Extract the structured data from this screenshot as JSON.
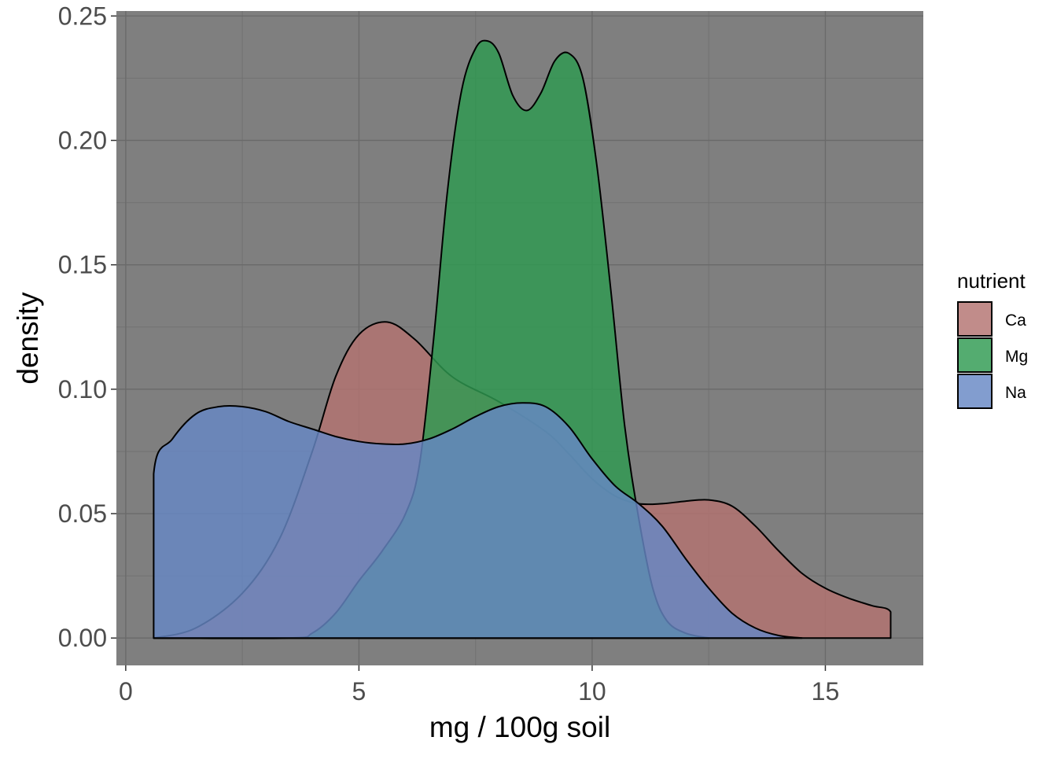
{
  "chart_data": {
    "type": "area",
    "subtype": "density",
    "title": "",
    "xlabel": "mg / 100g soil",
    "ylabel": "density",
    "xlim": [
      -0.2,
      17.1
    ],
    "ylim": [
      -0.011,
      0.252
    ],
    "x_ticks": [
      {
        "value": 0,
        "label": "0"
      },
      {
        "value": 5,
        "label": "5"
      },
      {
        "value": 10,
        "label": "10"
      },
      {
        "value": 15,
        "label": "15"
      }
    ],
    "y_ticks": [
      {
        "value": 0,
        "label": "0.00"
      },
      {
        "value": 0.05,
        "label": "0.05"
      },
      {
        "value": 0.1,
        "label": "0.10"
      },
      {
        "value": 0.15,
        "label": "0.15"
      },
      {
        "value": 0.2,
        "label": "0.20"
      },
      {
        "value": 0.25,
        "label": "0.25"
      }
    ],
    "grid": true,
    "panel_color": "#7f7f7f",
    "legend": {
      "title": "nutrient",
      "position": "right"
    },
    "series": [
      {
        "name": "Ca",
        "color": "#b37370",
        "points": [
          [
            0.6,
            0.0
          ],
          [
            1.5,
            0.004
          ],
          [
            2.5,
            0.018
          ],
          [
            3.3,
            0.04
          ],
          [
            4.0,
            0.075
          ],
          [
            4.5,
            0.105
          ],
          [
            5.0,
            0.122
          ],
          [
            5.6,
            0.127
          ],
          [
            6.2,
            0.12
          ],
          [
            7.0,
            0.105
          ],
          [
            8.0,
            0.095
          ],
          [
            9.0,
            0.083
          ],
          [
            9.5,
            0.074
          ],
          [
            10.0,
            0.064
          ],
          [
            10.5,
            0.057
          ],
          [
            11.0,
            0.054
          ],
          [
            11.5,
            0.054
          ],
          [
            12.0,
            0.055
          ],
          [
            12.5,
            0.0555
          ],
          [
            13.0,
            0.053
          ],
          [
            13.5,
            0.045
          ],
          [
            14.0,
            0.035
          ],
          [
            14.5,
            0.026
          ],
          [
            15.0,
            0.02
          ],
          [
            15.5,
            0.016
          ],
          [
            16.0,
            0.013
          ],
          [
            16.4,
            0.0105
          ],
          [
            16.4,
            0.0
          ]
        ]
      },
      {
        "name": "Mg",
        "color": "#2e9a51",
        "points": [
          [
            0.6,
            0.0
          ],
          [
            3.5,
            0.0
          ],
          [
            4.0,
            0.002
          ],
          [
            4.5,
            0.01
          ],
          [
            5.0,
            0.023
          ],
          [
            5.5,
            0.035
          ],
          [
            6.0,
            0.05
          ],
          [
            6.3,
            0.07
          ],
          [
            6.6,
            0.12
          ],
          [
            6.9,
            0.18
          ],
          [
            7.2,
            0.22
          ],
          [
            7.5,
            0.237
          ],
          [
            7.75,
            0.24
          ],
          [
            8.0,
            0.235
          ],
          [
            8.3,
            0.218
          ],
          [
            8.6,
            0.212
          ],
          [
            8.9,
            0.219
          ],
          [
            9.2,
            0.232
          ],
          [
            9.5,
            0.235
          ],
          [
            9.8,
            0.225
          ],
          [
            10.1,
            0.19
          ],
          [
            10.4,
            0.14
          ],
          [
            10.7,
            0.085
          ],
          [
            11.0,
            0.048
          ],
          [
            11.3,
            0.02
          ],
          [
            11.6,
            0.007
          ],
          [
            12.0,
            0.002
          ],
          [
            12.5,
            0.0
          ]
        ]
      },
      {
        "name": "Na",
        "color": "#6688c4",
        "points": [
          [
            0.6,
            0.0
          ],
          [
            0.6,
            0.066
          ],
          [
            1.0,
            0.08
          ],
          [
            1.5,
            0.09
          ],
          [
            2.0,
            0.093
          ],
          [
            2.5,
            0.093
          ],
          [
            3.0,
            0.091
          ],
          [
            3.5,
            0.087
          ],
          [
            4.0,
            0.084
          ],
          [
            4.5,
            0.081
          ],
          [
            5.0,
            0.079
          ],
          [
            5.5,
            0.078
          ],
          [
            6.0,
            0.078
          ],
          [
            6.5,
            0.08
          ],
          [
            7.0,
            0.084
          ],
          [
            7.5,
            0.089
          ],
          [
            8.0,
            0.093
          ],
          [
            8.5,
            0.0945
          ],
          [
            9.0,
            0.093
          ],
          [
            9.5,
            0.085
          ],
          [
            10.0,
            0.072
          ],
          [
            10.5,
            0.061
          ],
          [
            11.0,
            0.054
          ],
          [
            11.5,
            0.045
          ],
          [
            12.0,
            0.032
          ],
          [
            12.5,
            0.02
          ],
          [
            13.0,
            0.01
          ],
          [
            13.5,
            0.004
          ],
          [
            14.0,
            0.001
          ],
          [
            14.5,
            0.0
          ]
        ]
      }
    ]
  }
}
